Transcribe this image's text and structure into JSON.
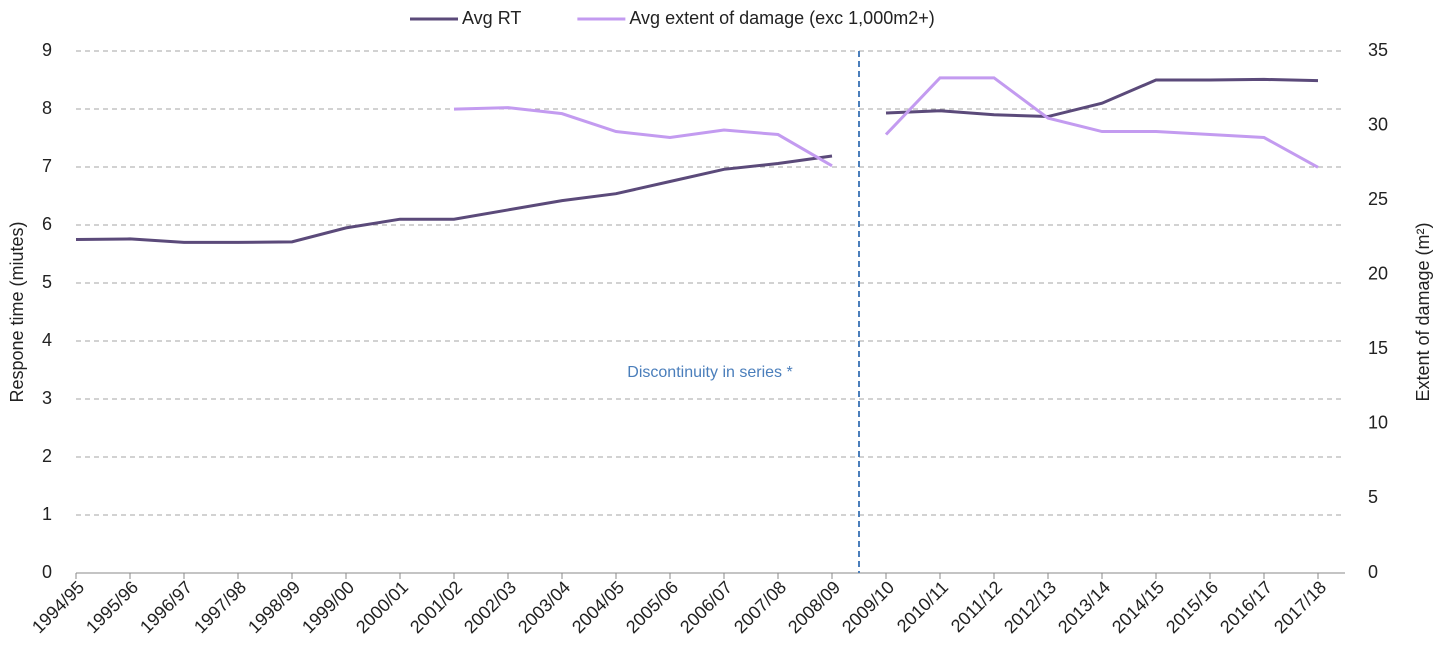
{
  "chart_data": {
    "type": "line",
    "categories": [
      "1994/95",
      "1995/96",
      "1996/97",
      "1997/98",
      "1998/99",
      "1999/00",
      "2000/01",
      "2001/02",
      "2002/03",
      "2003/04",
      "2004/05",
      "2005/06",
      "2006/07",
      "2007/08",
      "2008/09",
      "2009/10",
      "2010/11",
      "2011/12",
      "2012/13",
      "2013/14",
      "2014/15",
      "2015/16",
      "2016/17",
      "2017/18"
    ],
    "series": [
      {
        "name": "Avg RT",
        "color": "#5b4a7a",
        "values": [
          5.75,
          5.76,
          5.7,
          5.7,
          5.71,
          5.95,
          6.1,
          6.1,
          6.26,
          6.42,
          6.54,
          6.75,
          6.96,
          7.06,
          7.19,
          7.93,
          7.97,
          7.9,
          7.87,
          8.1,
          8.5,
          8.5,
          8.51,
          8.49
        ]
      },
      {
        "name": "Avg extent of damage (exc 1,000m2+)",
        "color": "#c39bf0",
        "axis": "y2",
        "values": [
          null,
          null,
          null,
          null,
          null,
          null,
          null,
          31.1,
          31.2,
          30.8,
          29.6,
          29.2,
          29.7,
          29.4,
          27.3,
          29.4,
          33.2,
          33.2,
          30.5,
          29.6,
          29.6,
          29.4,
          29.2,
          27.2
        ]
      }
    ],
    "ylabel": "Respone time (miutes)",
    "y2label": "Extent of damage (m²)",
    "ylim": [
      0,
      9
    ],
    "yticks": [
      0,
      1,
      2,
      3,
      4,
      5,
      6,
      7,
      8,
      9
    ],
    "y2lim": [
      0,
      35
    ],
    "y2ticks": [
      0,
      5,
      10,
      15,
      20,
      25,
      30,
      35
    ],
    "grid": true,
    "legend": "top",
    "annotation": {
      "text": "Discontinuity in series *",
      "after": "2008/09",
      "color": "#4a7ebb"
    }
  }
}
